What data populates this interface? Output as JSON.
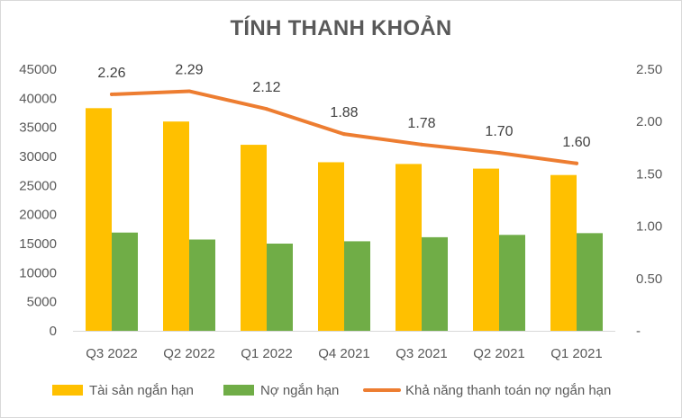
{
  "chart_data": {
    "type": "bar",
    "title": "TÍNH THANH KHOẢN",
    "categories": [
      "Q3 2022",
      "Q2 2022",
      "Q1 2022",
      "Q4 2021",
      "Q3 2021",
      "Q2 2021",
      "Q1 2021"
    ],
    "series": [
      {
        "name": "Tài sản ngắn hạn",
        "type": "bar",
        "axis": "left",
        "color": "#FFC000",
        "values": [
          38300,
          36000,
          32000,
          29000,
          28700,
          27900,
          26800
        ]
      },
      {
        "name": "Nợ ngắn hạn",
        "type": "bar",
        "axis": "left",
        "color": "#70AD47",
        "values": [
          16900,
          15700,
          15000,
          15400,
          16100,
          16500,
          16800
        ]
      },
      {
        "name": "Khả năng thanh toán nợ ngắn hạn",
        "type": "line",
        "axis": "right",
        "color": "#ED7D31",
        "values": [
          2.26,
          2.29,
          2.12,
          1.88,
          1.78,
          1.7,
          1.6
        ],
        "data_labels": [
          "2.26",
          "2.29",
          "2.12",
          "1.88",
          "1.78",
          "1.70",
          "1.60"
        ]
      }
    ],
    "y_left": {
      "min": 0,
      "max": 45000,
      "ticks": [
        "0",
        "5000",
        "10000",
        "15000",
        "20000",
        "25000",
        "30000",
        "35000",
        "40000",
        "45000"
      ]
    },
    "y_right": {
      "min": 0,
      "max": 2.5,
      "ticks": [
        "-",
        "0.50",
        "1.00",
        "1.50",
        "2.00",
        "2.50"
      ]
    },
    "grid": false,
    "legend_position": "bottom"
  }
}
